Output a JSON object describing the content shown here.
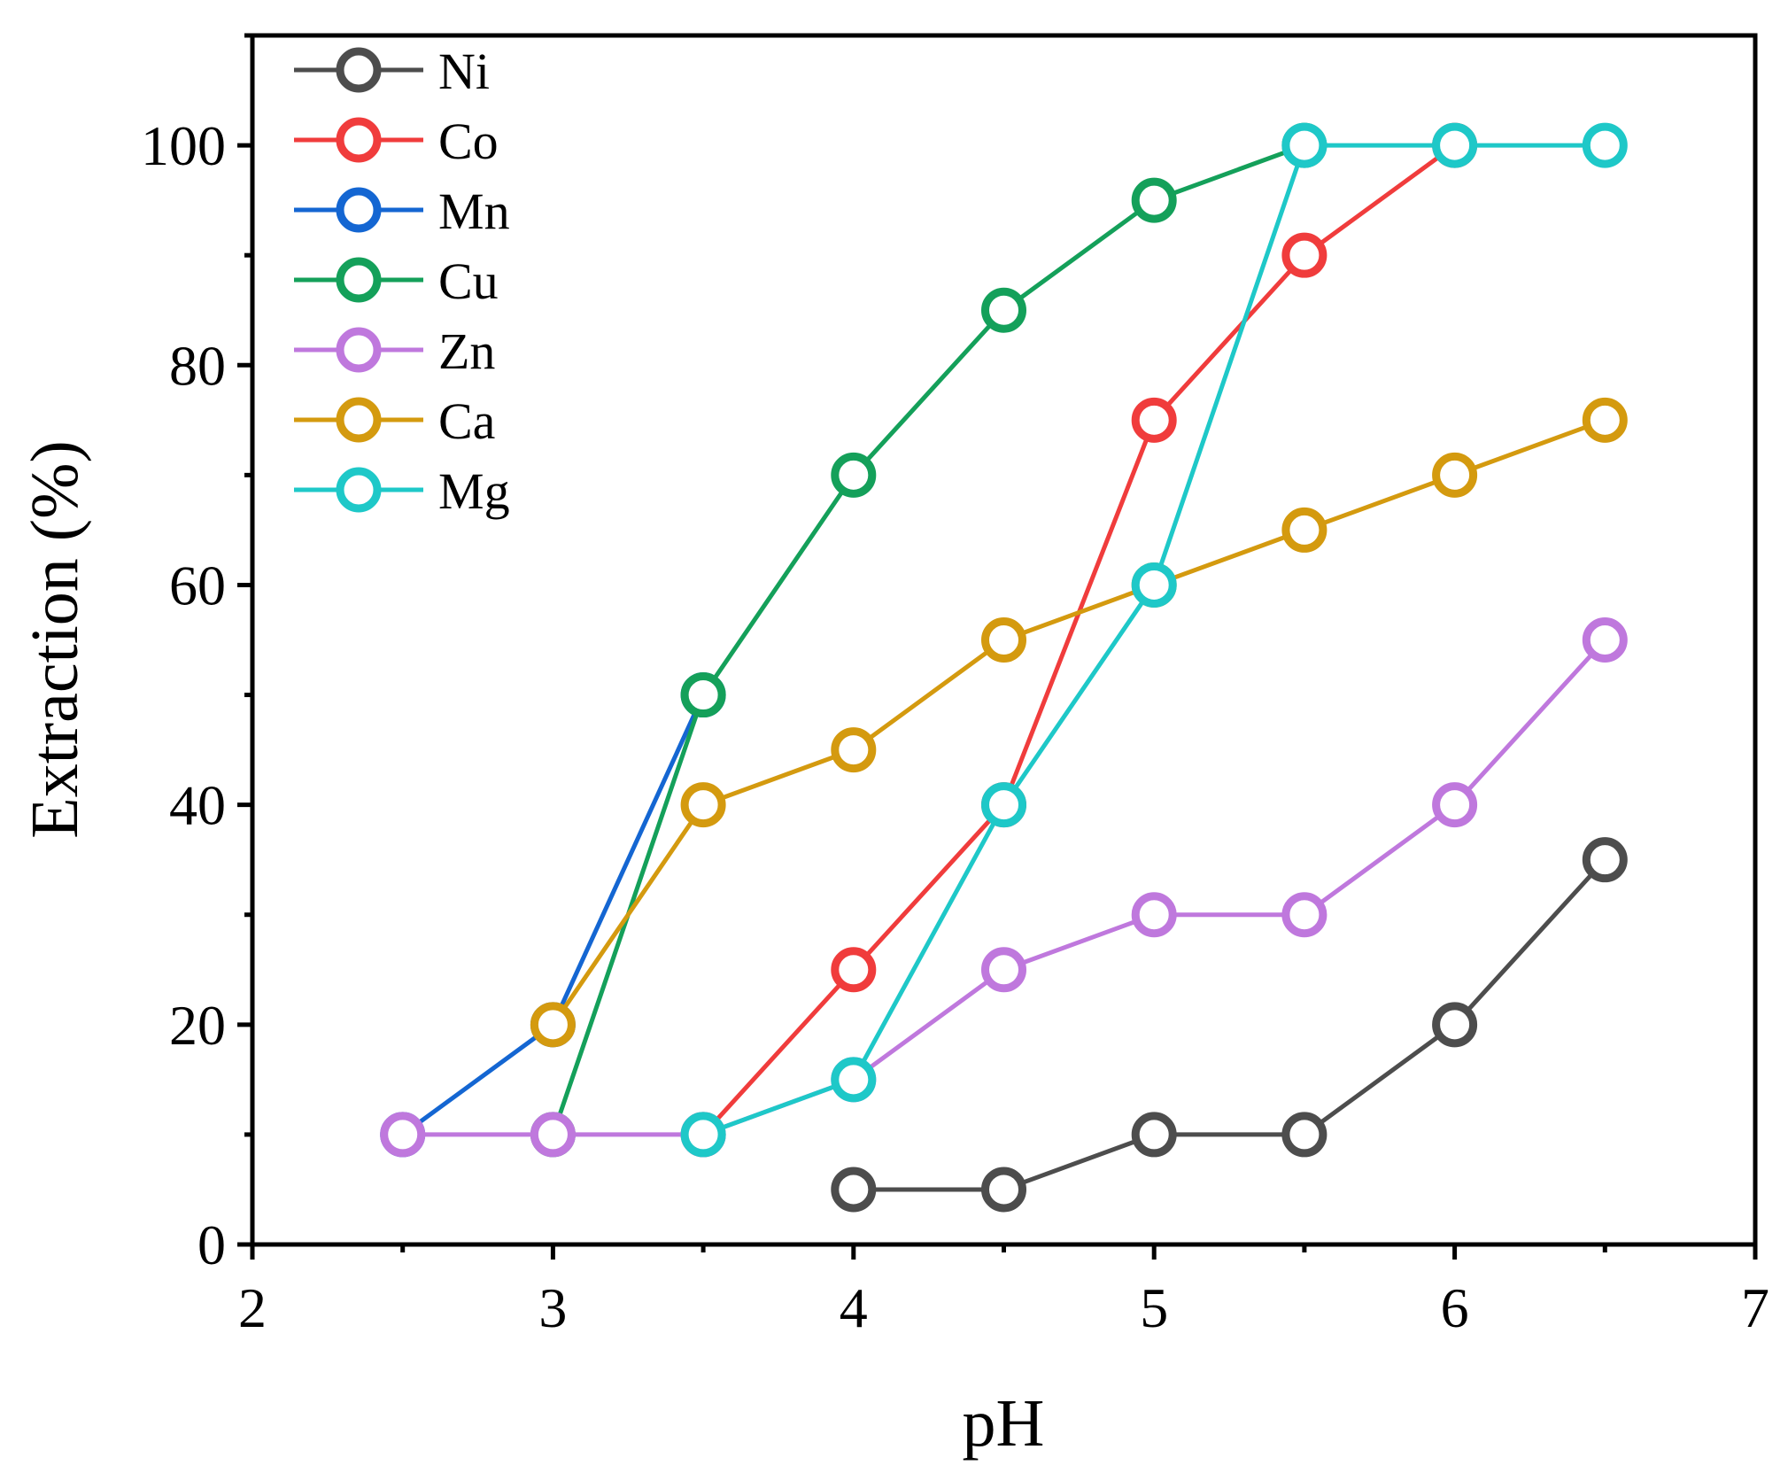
{
  "chart_data": {
    "type": "line",
    "title": "",
    "xlabel": "pH",
    "ylabel": "Extraction (%)",
    "xlim": [
      2,
      7
    ],
    "ylim": [
      0,
      110
    ],
    "xticks": [
      2,
      3,
      4,
      5,
      6,
      7
    ],
    "yticks": [
      0,
      20,
      40,
      60,
      80,
      100
    ],
    "grid": false,
    "legend_position": "top-left",
    "marker": "open-circle",
    "series": [
      {
        "name": "Ni",
        "color": "#4d4d4d",
        "points": [
          [
            4,
            5
          ],
          [
            4.5,
            5
          ],
          [
            5,
            10
          ],
          [
            5.5,
            10
          ],
          [
            6,
            20
          ],
          [
            6.5,
            35
          ]
        ]
      },
      {
        "name": "Co",
        "color": "#f03c3c",
        "points": [
          [
            3.5,
            10
          ],
          [
            4,
            25
          ],
          [
            4.5,
            40
          ],
          [
            5,
            75
          ],
          [
            5.5,
            90
          ],
          [
            6,
            100
          ]
        ]
      },
      {
        "name": "Mn",
        "color": "#1466d2",
        "points": [
          [
            2.5,
            10
          ],
          [
            3,
            20
          ],
          [
            3.5,
            50
          ]
        ]
      },
      {
        "name": "Cu",
        "color": "#14a05a",
        "points": [
          [
            3,
            10
          ],
          [
            3.5,
            50
          ],
          [
            4,
            70
          ],
          [
            4.5,
            85
          ],
          [
            5,
            95
          ],
          [
            5.5,
            100
          ]
        ]
      },
      {
        "name": "Zn",
        "color": "#bf78dd",
        "points": [
          [
            2.5,
            10
          ],
          [
            3,
            10
          ],
          [
            3.5,
            10
          ],
          [
            4,
            15
          ],
          [
            4.5,
            25
          ],
          [
            5,
            30
          ],
          [
            5.5,
            30
          ],
          [
            6,
            40
          ],
          [
            6.5,
            55
          ]
        ]
      },
      {
        "name": "Ca",
        "color": "#d49a0f",
        "points": [
          [
            3,
            20
          ],
          [
            3.5,
            40
          ],
          [
            4,
            45
          ],
          [
            4.5,
            55
          ],
          [
            5,
            60
          ],
          [
            5.5,
            65
          ],
          [
            6,
            70
          ],
          [
            6.5,
            75
          ]
        ]
      },
      {
        "name": "Mg",
        "color": "#1ec8c8",
        "points": [
          [
            3.5,
            10
          ],
          [
            4,
            15
          ],
          [
            4.5,
            40
          ],
          [
            5,
            60
          ],
          [
            5.5,
            100
          ],
          [
            6,
            100
          ],
          [
            6.5,
            100
          ]
        ]
      }
    ]
  }
}
